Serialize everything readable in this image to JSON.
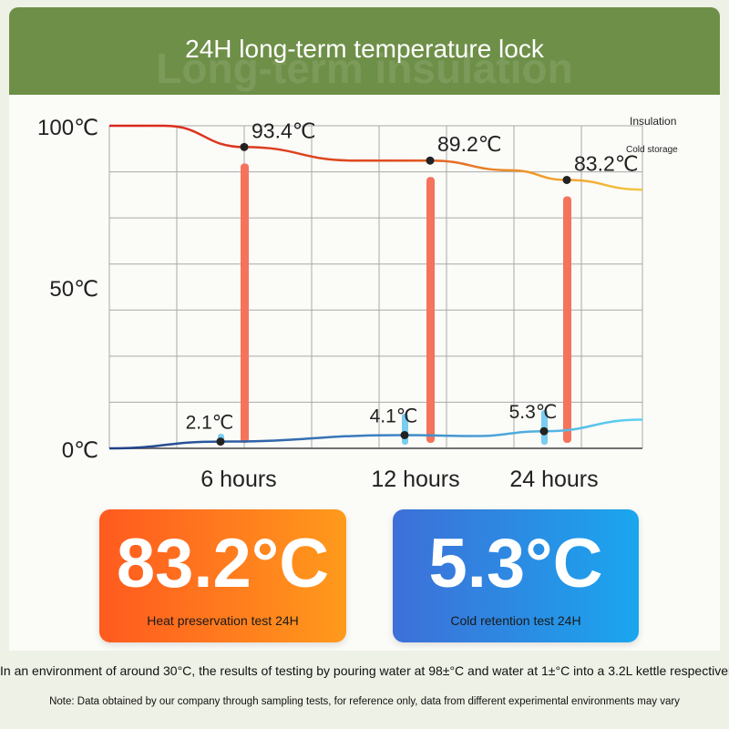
{
  "header": {
    "title": "24H long-term temperature lock",
    "ghost_text": "Long-term insulation"
  },
  "cards": {
    "heat": {
      "value": "83.2°C",
      "label": "Heat preservation test 24H"
    },
    "cold": {
      "value": "5.3°C",
      "label": "Cold retention test 24H"
    }
  },
  "footer": {
    "description": "In an environment of around 30°C, the results of testing by pouring water at 98±°C and water at 1±°C into a 3.2L kettle respectively are",
    "note": "Note: Data obtained by our company through sampling tests, for reference only, data from different experimental environments may vary"
  },
  "colors": {
    "header_bg": "#6e8f48",
    "insulation_start": "#d9251c",
    "insulation_end": "#f4c542",
    "cold_start": "#1f3f86",
    "cold_end": "#5ed3f3",
    "hot_bar": "#f4735a",
    "cold_bar": "#79cdf0",
    "grid": "#a9a9a9"
  },
  "chart_data": {
    "type": "line",
    "ylim": [
      0,
      100
    ],
    "yticks": [
      {
        "value": 0,
        "label": "0℃"
      },
      {
        "value": 50,
        "label": "50℃"
      },
      {
        "value": 100,
        "label": "100℃"
      }
    ],
    "categories": [
      "6 hours",
      "12 hours",
      "24 hours"
    ],
    "series": [
      {
        "name": "Insulation",
        "values": [
          93.4,
          89.2,
          83.2
        ],
        "labels": [
          "93.4℃",
          "89.2℃",
          "83.2℃"
        ]
      },
      {
        "name": "Cold storage",
        "values": [
          2.1,
          4.1,
          5.3
        ],
        "labels": [
          "2.1℃",
          "4.1℃",
          "5.3℃"
        ]
      }
    ],
    "legend_position": "top-right",
    "grid": true
  }
}
